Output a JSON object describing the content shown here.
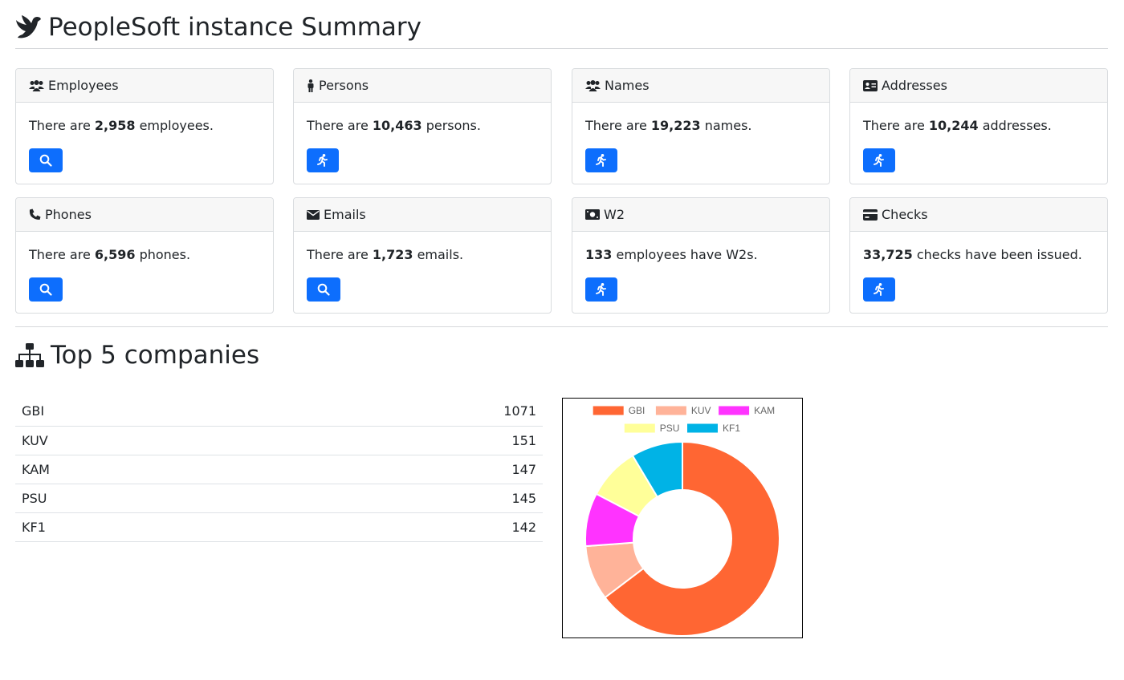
{
  "page": {
    "title": "PeopleSoft instance Summary"
  },
  "cards": [
    {
      "id": "employees",
      "header": "Employees",
      "prefix": "There are ",
      "value": "2,958",
      "suffix": " employees.",
      "header_icon": "users-icon",
      "button": "search"
    },
    {
      "id": "persons",
      "header": "Persons",
      "prefix": "There are ",
      "value": "10,463",
      "suffix": " persons.",
      "header_icon": "person-icon",
      "button": "run"
    },
    {
      "id": "names",
      "header": "Names",
      "prefix": "There are ",
      "value": "19,223",
      "suffix": " names.",
      "header_icon": "users-icon",
      "button": "run"
    },
    {
      "id": "addresses",
      "header": "Addresses",
      "prefix": "There are ",
      "value": "10,244",
      "suffix": " addresses.",
      "header_icon": "address-card-icon",
      "button": "run"
    },
    {
      "id": "phones",
      "header": "Phones",
      "prefix": "There are ",
      "value": "6,596",
      "suffix": " phones.",
      "header_icon": "phone-icon",
      "button": "search"
    },
    {
      "id": "emails",
      "header": "Emails",
      "prefix": "There are ",
      "value": "1,723",
      "suffix": " emails.",
      "header_icon": "envelope-icon",
      "button": "search"
    },
    {
      "id": "w2",
      "header": "W2",
      "prefix": "",
      "value": "133",
      "suffix": " employees have W2s.",
      "header_icon": "money-bill-icon",
      "button": "run"
    },
    {
      "id": "checks",
      "header": "Checks",
      "prefix": "",
      "value": "33,725",
      "suffix": " checks have been issued.",
      "header_icon": "credit-card-icon",
      "button": "run"
    }
  ],
  "companies": {
    "title": "Top 5 companies",
    "rows": [
      {
        "name": "GBI",
        "count": "1071"
      },
      {
        "name": "KUV",
        "count": "151"
      },
      {
        "name": "KAM",
        "count": "147"
      },
      {
        "name": "PSU",
        "count": "145"
      },
      {
        "name": "KF1",
        "count": "142"
      }
    ]
  },
  "chart_data": {
    "type": "pie",
    "variant": "doughnut",
    "categories": [
      "GBI",
      "KUV",
      "KAM",
      "PSU",
      "KF1"
    ],
    "values": [
      1071,
      151,
      147,
      145,
      142
    ],
    "colors": [
      "#ff6633",
      "#ffb399",
      "#ff33ff",
      "#ffff99",
      "#00b3e6"
    ],
    "legend": "top",
    "title": ""
  }
}
